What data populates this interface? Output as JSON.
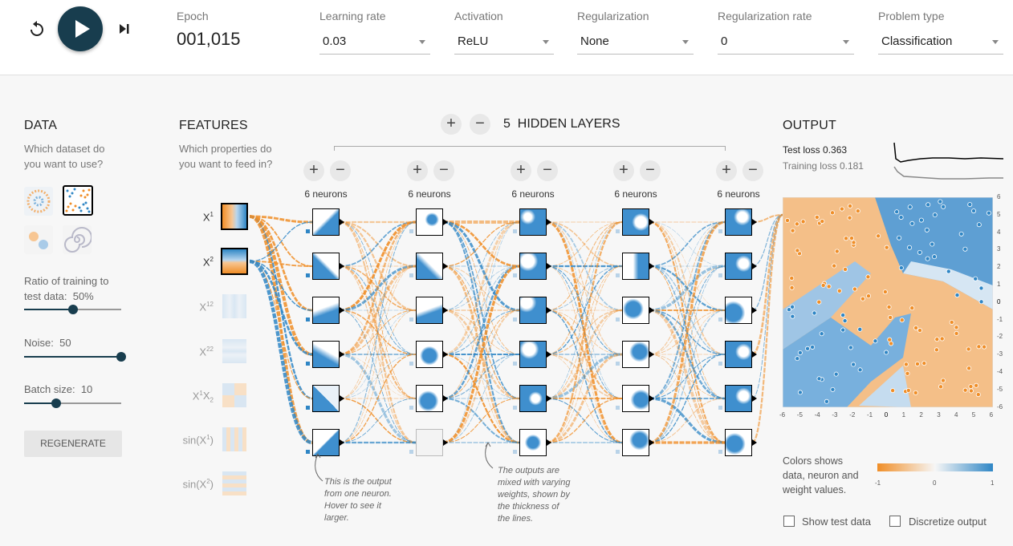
{
  "controls": {
    "epoch_label": "Epoch",
    "epoch_value": "001,015",
    "learning_rate": {
      "label": "Learning rate",
      "value": "0.03"
    },
    "activation": {
      "label": "Activation",
      "value": "ReLU"
    },
    "regularization": {
      "label": "Regularization",
      "value": "None"
    },
    "regularization_rate": {
      "label": "Regularization rate",
      "value": "0"
    },
    "problem_type": {
      "label": "Problem type",
      "value": "Classification"
    }
  },
  "data_panel": {
    "title": "DATA",
    "subtitle_line1": "Which dataset do",
    "subtitle_line2": "you want to use?",
    "ratio_label_line1": "Ratio of training to",
    "ratio_label_line2": "test data:",
    "ratio_value": "50%",
    "ratio_fraction": 0.5,
    "noise_label": "Noise:",
    "noise_value": "50",
    "noise_fraction": 1.0,
    "batch_label": "Batch size:",
    "batch_value": "10",
    "batch_fraction": 0.33,
    "regenerate": "REGENERATE"
  },
  "features_panel": {
    "title": "FEATURES",
    "subtitle_line1": "Which properties do",
    "subtitle_line2": "you want to feed in?",
    "features": [
      {
        "base": "X",
        "sup": "1",
        "rest": "",
        "active": true
      },
      {
        "base": "X",
        "sup": "2",
        "rest": "",
        "active": true
      },
      {
        "base": "X",
        "sup": "1",
        "rest": "2",
        "active": false
      },
      {
        "base": "X",
        "sup": "2",
        "rest": "2",
        "active": false
      },
      {
        "base": "X",
        "sup": "1",
        "rest": "X2",
        "active": false
      },
      {
        "base": "sin(X",
        "sup": "1",
        "rest": ")",
        "active": false
      },
      {
        "base": "sin(X",
        "sup": "2",
        "rest": ")",
        "active": false
      }
    ]
  },
  "network": {
    "hidden_layers_count": "5",
    "hidden_layers_label": "HIDDEN LAYERS",
    "layers": [
      {
        "neurons_label": "6 neurons"
      },
      {
        "neurons_label": "6 neurons"
      },
      {
        "neurons_label": "6 neurons"
      },
      {
        "neurons_label": "6 neurons"
      },
      {
        "neurons_label": "6 neurons"
      }
    ],
    "note1_lines": [
      "This is the output",
      "from one neuron.",
      "Hover to see it",
      "larger."
    ],
    "note2_lines": [
      "The outputs are",
      "mixed with varying",
      "weights, shown by",
      "the thickness of",
      "the lines."
    ]
  },
  "output_panel": {
    "title": "OUTPUT",
    "test_loss_label": "Test loss",
    "test_loss_value": "0.363",
    "training_loss_label": "Training loss",
    "training_loss_value": "0.181",
    "axis_ticks": [
      "-6",
      "-5",
      "-4",
      "-3",
      "-2",
      "-1",
      "0",
      "1",
      "2",
      "3",
      "4",
      "5",
      "6"
    ],
    "colors_text_line1": "Colors shows",
    "colors_text_line2": "data, neuron and",
    "colors_text_line3": "weight values.",
    "scale_min": "-1",
    "scale_mid": "0",
    "scale_max": "1",
    "show_test_data": "Show test data",
    "discretize_output": "Discretize output"
  },
  "colors": {
    "positive": "#2f86c5",
    "negative": "#f08e27",
    "accent": "#183d4e"
  }
}
